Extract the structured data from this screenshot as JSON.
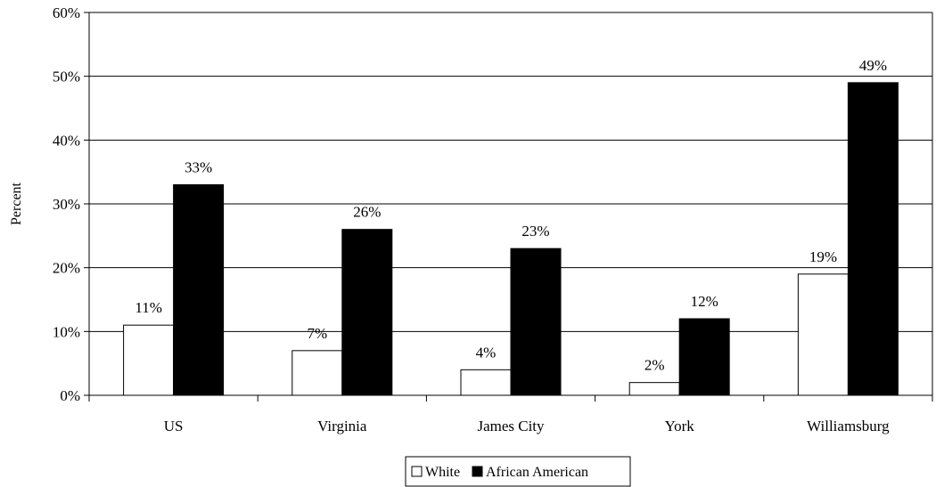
{
  "chart_data": {
    "type": "bar",
    "categories": [
      "US",
      "Virginia",
      "James City",
      "York",
      "Williamsburg"
    ],
    "series": [
      {
        "name": "White",
        "values": [
          11,
          7,
          4,
          2,
          19
        ],
        "color": "#ffffff"
      },
      {
        "name": "African American",
        "values": [
          33,
          26,
          23,
          12,
          49
        ],
        "color": "#000000"
      }
    ],
    "ylabel": "Percent",
    "ylim": [
      0,
      60
    ],
    "yticks": [
      0,
      10,
      20,
      30,
      40,
      50,
      60
    ],
    "tick_format": "%",
    "grid": true,
    "legend_position": "bottom-center"
  }
}
